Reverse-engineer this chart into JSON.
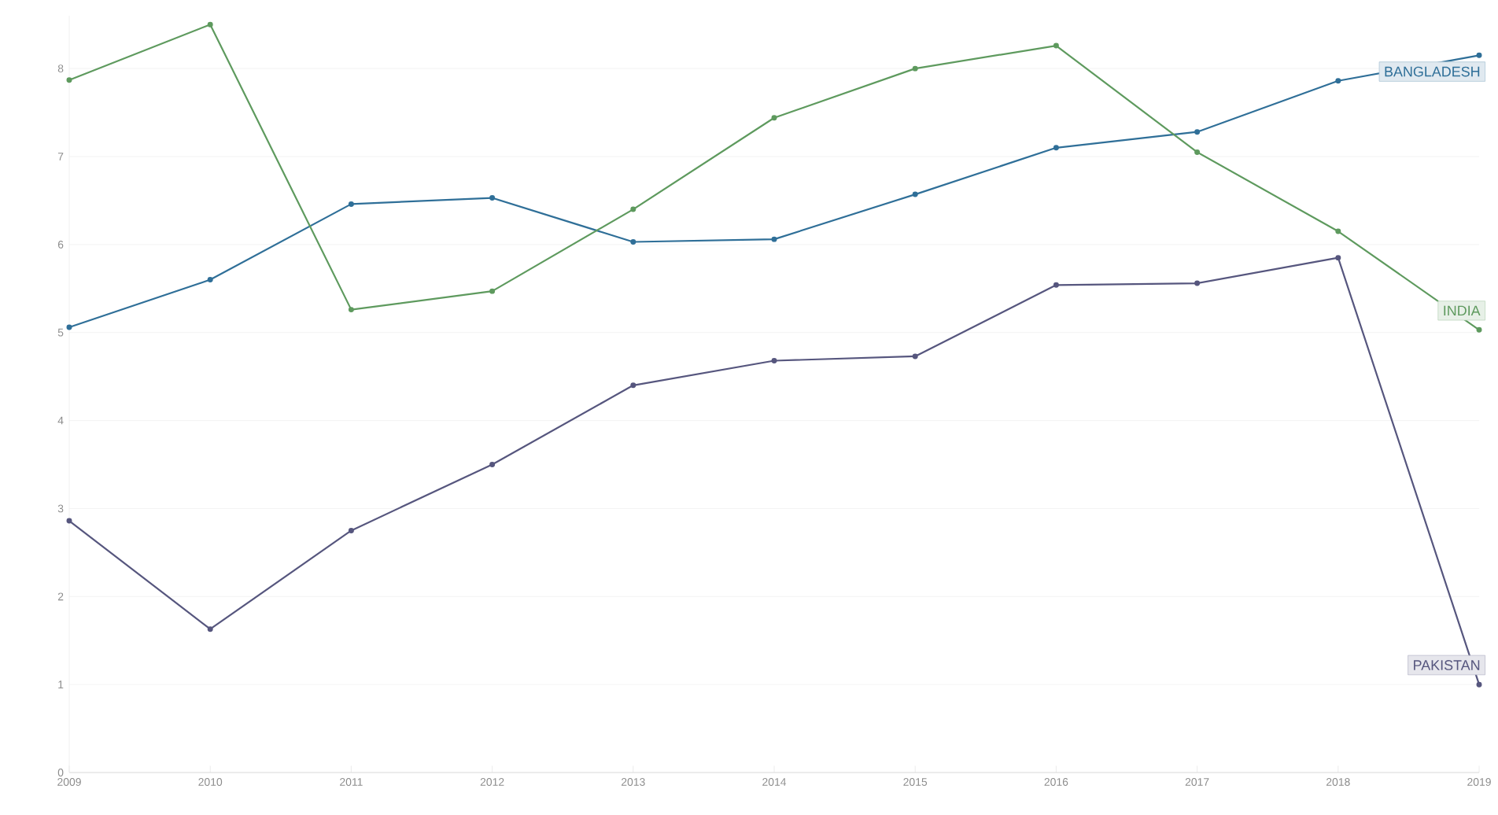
{
  "chart_data": {
    "type": "line",
    "x": [
      2009,
      2010,
      2011,
      2012,
      2013,
      2014,
      2015,
      2016,
      2017,
      2018,
      2019
    ],
    "series": [
      {
        "name": "BANGLADESH",
        "color": "#2f6f98",
        "values": [
          5.06,
          5.6,
          6.46,
          6.53,
          6.03,
          6.06,
          6.57,
          7.1,
          7.28,
          7.86,
          8.15
        ]
      },
      {
        "name": "INDIA",
        "color": "#5e9a5e",
        "values": [
          7.87,
          8.5,
          5.26,
          5.47,
          6.4,
          7.44,
          8.0,
          8.26,
          7.05,
          6.15,
          5.03
        ]
      },
      {
        "name": "PAKISTAN",
        "color": "#56567e",
        "values": [
          2.86,
          1.63,
          2.75,
          3.5,
          4.4,
          4.68,
          4.73,
          5.54,
          5.56,
          5.85,
          1.0
        ]
      }
    ],
    "xlim": [
      2009,
      2019
    ],
    "xticks": [
      2009,
      2010,
      2011,
      2012,
      2013,
      2014,
      2015,
      2016,
      2017,
      2018,
      2019
    ],
    "ylim": [
      0,
      8.6
    ],
    "yticks": [
      0,
      1,
      2,
      3,
      4,
      5,
      6,
      7,
      8
    ],
    "grid": "y",
    "marker": "circle",
    "line_style": "solid"
  }
}
